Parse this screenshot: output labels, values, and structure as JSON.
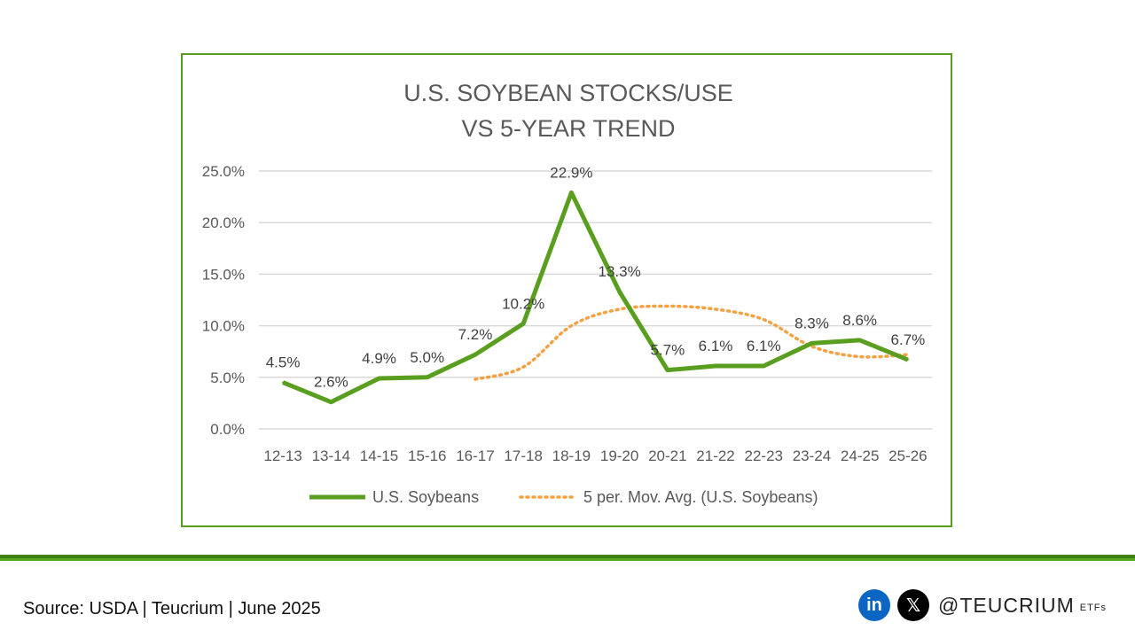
{
  "chart_data": {
    "type": "line",
    "title_lines": [
      "U.S. SOYBEAN STOCKS/USE",
      "VS 5-YEAR TREND"
    ],
    "categories": [
      "12-13",
      "13-14",
      "14-15",
      "15-16",
      "16-17",
      "17-18",
      "18-19",
      "19-20",
      "20-21",
      "21-22",
      "22-23",
      "23-24",
      "24-25",
      "25-26"
    ],
    "ylim": [
      0,
      25
    ],
    "yticks": [
      0,
      5,
      10,
      15,
      20,
      25
    ],
    "ytick_labels": [
      "0.0%",
      "5.0%",
      "10.0%",
      "15.0%",
      "20.0%",
      "25.0%"
    ],
    "series": [
      {
        "name": "U.S. Soybeans",
        "values": [
          4.5,
          2.6,
          4.9,
          5.0,
          7.2,
          10.2,
          22.9,
          13.3,
          5.7,
          6.1,
          6.1,
          8.3,
          8.6,
          6.7
        ],
        "labels": [
          "4.5%",
          "2.6%",
          "4.9%",
          "5.0%",
          "7.2%",
          "10.2%",
          "22.9%",
          "13.3%",
          "5.7%",
          "6.1%",
          "6.1%",
          "8.3%",
          "8.6%",
          "6.7%"
        ],
        "color": "#5a9e1f"
      },
      {
        "name": "5 per. Mov. Avg. (U.S. Soybeans)",
        "values": [
          null,
          null,
          null,
          null,
          4.8,
          6.0,
          10.0,
          11.6,
          11.9,
          11.6,
          10.6,
          8.0,
          7.0,
          7.2
        ],
        "color": "#f5a142"
      }
    ],
    "grid": true,
    "legend": "bottom"
  },
  "footer": {
    "source": "Source: USDA | Teucrium | June 2025",
    "linkedin_glyph": "in",
    "x_glyph": "𝕏",
    "handle": "@TEUCRIUM",
    "etfs": "ETFs",
    "icons": [
      "linkedin-icon",
      "x-icon"
    ],
    "colors": {
      "linkedin": "#0a66c2",
      "x": "#000000",
      "bar_dark": "#3f7e12",
      "bar_light": "#5aa620"
    }
  }
}
